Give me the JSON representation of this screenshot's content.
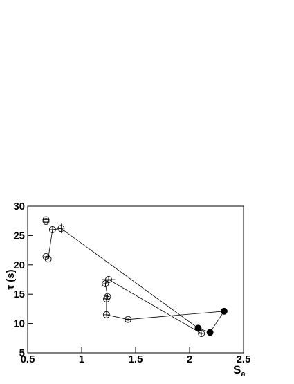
{
  "chart_data": {
    "type": "line",
    "xlabel": "S",
    "xlabel_sub": "a",
    "ylabel": "τ (s)",
    "x": [
      0.67,
      0.67,
      0.67,
      0.69,
      0.73,
      0.81,
      2.08,
      2.19,
      2.32,
      1.43,
      1.23,
      1.23,
      1.24,
      1.22,
      1.25,
      2.11
    ],
    "series": [
      {
        "values": [
          27.7,
          27.4,
          21.4,
          21.0,
          26.0,
          26.2,
          9.2,
          8.5,
          12.1,
          10.7,
          11.5,
          14.2,
          14.6,
          16.8,
          17.5,
          8.3
        ],
        "color": "#000000",
        "filled": [
          false,
          false,
          false,
          false,
          false,
          false,
          true,
          true,
          true,
          false,
          false,
          false,
          false,
          false,
          false,
          false
        ],
        "xerr": [
          0.02,
          0.02,
          0.02,
          0.02,
          0.02,
          0.02,
          0.02,
          0.02,
          0.02,
          0.03,
          0.02,
          0.02,
          0.02,
          0.02,
          0.06,
          0.02
        ],
        "yerr": [
          0.5,
          0.4,
          0.4,
          0.4,
          0.6,
          0.8,
          0.3,
          0.3,
          0.3,
          0.3,
          0.3,
          0.4,
          0.4,
          0.4,
          0.4,
          0.3
        ]
      }
    ],
    "xlim": [
      0.5,
      2.5
    ],
    "ylim": [
      5,
      30
    ],
    "xticks": [
      0.5,
      1,
      1.5,
      2,
      2.5
    ],
    "yticks": [
      5,
      10,
      15,
      20,
      25,
      30
    ]
  }
}
